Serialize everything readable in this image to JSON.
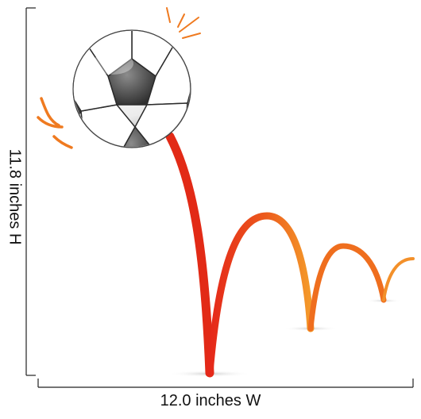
{
  "dimensions": {
    "height_label": "11.8 inches H",
    "width_label": "12.0 inches W"
  },
  "colors": {
    "ball_white": "#ffffff",
    "ball_grey": "#7a7a7a",
    "ball_dark": "#2e2e2e",
    "trail_red": "#e8331a",
    "trail_orange": "#f07a1a",
    "accent_orange": "#ef7a20",
    "line": "#222222"
  },
  "icons": {
    "ball": "soccer-ball-icon",
    "trail": "bounce-trail",
    "burst": "impact-burst-icon"
  }
}
